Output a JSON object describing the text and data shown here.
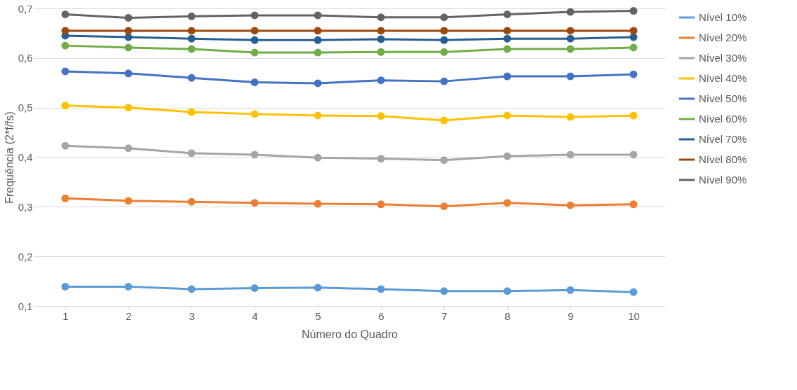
{
  "chart_data": {
    "type": "line",
    "xlabel": "Número do Quadro",
    "ylabel": "Frequência (2*f/fs)",
    "categories": [
      "1",
      "2",
      "3",
      "4",
      "5",
      "6",
      "7",
      "8",
      "9",
      "10"
    ],
    "ylim": [
      0.1,
      0.7
    ],
    "yticks": [
      {
        "value": 0.1,
        "label": "0,1"
      },
      {
        "value": 0.2,
        "label": "0,2"
      },
      {
        "value": 0.3,
        "label": "0,3"
      },
      {
        "value": 0.4,
        "label": "0,4"
      },
      {
        "value": 0.5,
        "label": "0,5"
      },
      {
        "value": 0.6,
        "label": "0,6"
      },
      {
        "value": 0.7,
        "label": "0,7"
      }
    ],
    "grid": "y",
    "legend": "right",
    "marker": "circle",
    "line_style": "solid",
    "series": [
      {
        "name": "Nível 10%",
        "color": "#5b9bd5",
        "values": [
          0.139,
          0.139,
          0.134,
          0.136,
          0.137,
          0.134,
          0.13,
          0.13,
          0.132,
          0.128
        ]
      },
      {
        "name": "Nível 20%",
        "color": "#ed7d31",
        "values": [
          0.317,
          0.312,
          0.31,
          0.308,
          0.306,
          0.305,
          0.301,
          0.308,
          0.303,
          0.305
        ]
      },
      {
        "name": "Nível 30%",
        "color": "#a5a5a5",
        "values": [
          0.423,
          0.418,
          0.408,
          0.405,
          0.399,
          0.397,
          0.394,
          0.402,
          0.405,
          0.405
        ]
      },
      {
        "name": "Nível 40%",
        "color": "#ffc000",
        "values": [
          0.504,
          0.5,
          0.491,
          0.487,
          0.484,
          0.483,
          0.474,
          0.484,
          0.481,
          0.484
        ]
      },
      {
        "name": "Nível 50%",
        "color": "#4472c4",
        "values": [
          0.573,
          0.569,
          0.56,
          0.551,
          0.549,
          0.555,
          0.553,
          0.563,
          0.563,
          0.567
        ]
      },
      {
        "name": "Nível 60%",
        "color": "#70ad47",
        "values": [
          0.625,
          0.621,
          0.618,
          0.611,
          0.611,
          0.612,
          0.612,
          0.618,
          0.618,
          0.621
        ]
      },
      {
        "name": "Nível 70%",
        "color": "#255e91",
        "values": [
          0.645,
          0.642,
          0.639,
          0.636,
          0.636,
          0.638,
          0.636,
          0.639,
          0.639,
          0.642
        ]
      },
      {
        "name": "Nível 80%",
        "color": "#9e480e",
        "values": [
          0.655,
          0.655,
          0.655,
          0.655,
          0.655,
          0.655,
          0.655,
          0.655,
          0.655,
          0.655
        ]
      },
      {
        "name": "Nível 90%",
        "color": "#636363",
        "values": [
          0.688,
          0.681,
          0.684,
          0.686,
          0.686,
          0.682,
          0.682,
          0.688,
          0.693,
          0.695
        ]
      }
    ]
  }
}
